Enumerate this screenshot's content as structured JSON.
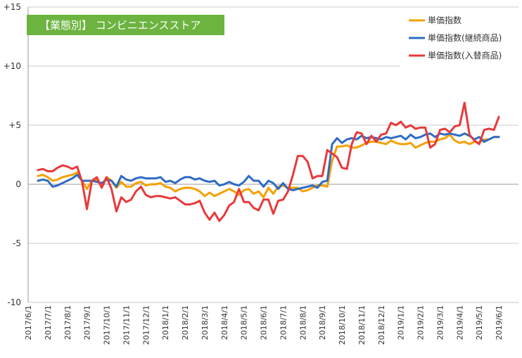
{
  "chart_data": {
    "type": "line",
    "title": "【業態別】 コンビニエンスストア",
    "title_bg": "#6cb33f",
    "ylim": [
      -10,
      15
    ],
    "ytick_values": [
      15,
      10,
      5,
      0,
      -5,
      -10
    ],
    "ytick_labels": [
      "+15",
      "+10",
      "+5",
      "0",
      "-5",
      "-10"
    ],
    "xtick_labels": [
      "2017/6/1",
      "2017/7/1",
      "2017/8/1",
      "2017/9/1",
      "2017/10/1",
      "2017/11/1",
      "2017/12/1",
      "2018/1/1",
      "2018/2/1",
      "2018/3/1",
      "2018/4/1",
      "2018/5/1",
      "2018/6/1",
      "2018/7/1",
      "2018/8/1",
      "2018/9/1",
      "2018/10/1",
      "2018/11/1",
      "2018/12/1",
      "2019/1/1",
      "2019/2/1",
      "2019/3/1",
      "2019/4/1",
      "2019/5/1",
      "2019/6/1"
    ],
    "grid": "horizontal",
    "legend_position": "top-right",
    "series": [
      {
        "name": "単価指数",
        "color": "#f5a000",
        "points": [
          [
            0.5,
            0.7
          ],
          [
            0.75,
            0.8
          ],
          [
            1.0,
            0.6
          ],
          [
            1.25,
            0.3
          ],
          [
            1.5,
            0.4
          ],
          [
            1.75,
            0.6
          ],
          [
            2.0,
            0.7
          ],
          [
            2.25,
            0.8
          ],
          [
            2.5,
            1.0
          ],
          [
            2.75,
            0.3
          ],
          [
            3.0,
            -0.4
          ],
          [
            3.25,
            0.3
          ],
          [
            3.5,
            0.4
          ],
          [
            3.75,
            -0.2
          ],
          [
            4.0,
            0.6
          ],
          [
            4.25,
            0.3
          ],
          [
            4.5,
            -0.3
          ],
          [
            4.75,
            0.2
          ],
          [
            5.0,
            -0.2
          ],
          [
            5.25,
            -0.2
          ],
          [
            5.5,
            0.1
          ],
          [
            5.75,
            0.2
          ],
          [
            6.0,
            -0.1
          ],
          [
            6.25,
            0.0
          ],
          [
            6.5,
            0.0
          ],
          [
            6.75,
            0.1
          ],
          [
            7.0,
            -0.2
          ],
          [
            7.25,
            -0.3
          ],
          [
            7.5,
            -0.6
          ],
          [
            7.75,
            -0.4
          ],
          [
            8.0,
            -0.3
          ],
          [
            8.25,
            -0.3
          ],
          [
            8.5,
            -0.4
          ],
          [
            8.75,
            -0.6
          ],
          [
            9.0,
            -1.0
          ],
          [
            9.25,
            -0.7
          ],
          [
            9.5,
            -1.0
          ],
          [
            9.75,
            -0.8
          ],
          [
            10.0,
            -0.6
          ],
          [
            10.25,
            -0.4
          ],
          [
            10.5,
            -0.6
          ],
          [
            10.75,
            -0.9
          ],
          [
            11.0,
            -0.5
          ],
          [
            11.25,
            -0.4
          ],
          [
            11.5,
            -0.8
          ],
          [
            11.75,
            -0.6
          ],
          [
            12.0,
            -1.1
          ],
          [
            12.25,
            -0.3
          ],
          [
            12.5,
            -0.8
          ],
          [
            12.75,
            -0.2
          ],
          [
            13.0,
            -0.1
          ],
          [
            13.25,
            -0.3
          ],
          [
            13.5,
            -0.3
          ],
          [
            13.75,
            -0.3
          ],
          [
            14.0,
            -0.6
          ],
          [
            14.25,
            -0.5
          ],
          [
            14.5,
            -0.3
          ],
          [
            14.75,
            -0.1
          ],
          [
            15.0,
            -0.1
          ],
          [
            15.25,
            -0.2
          ],
          [
            15.5,
            2.0
          ],
          [
            15.75,
            3.2
          ],
          [
            16.0,
            3.2
          ],
          [
            16.25,
            3.3
          ],
          [
            16.5,
            3.1
          ],
          [
            16.75,
            3.1
          ],
          [
            17.0,
            3.3
          ],
          [
            17.25,
            3.5
          ],
          [
            17.5,
            3.6
          ],
          [
            17.75,
            3.6
          ],
          [
            18.0,
            3.5
          ],
          [
            18.25,
            3.4
          ],
          [
            18.5,
            3.7
          ],
          [
            18.75,
            3.5
          ],
          [
            19.0,
            3.4
          ],
          [
            19.25,
            3.4
          ],
          [
            19.5,
            3.5
          ],
          [
            19.75,
            3.1
          ],
          [
            20.0,
            3.3
          ],
          [
            20.25,
            3.5
          ],
          [
            20.5,
            3.6
          ],
          [
            20.75,
            3.6
          ],
          [
            21.0,
            3.8
          ],
          [
            21.25,
            3.9
          ],
          [
            21.5,
            4.2
          ],
          [
            21.75,
            3.7
          ],
          [
            22.0,
            3.5
          ],
          [
            22.25,
            3.6
          ],
          [
            22.5,
            3.4
          ],
          [
            22.75,
            3.6
          ],
          [
            23.0,
            3.5
          ],
          [
            23.25,
            3.8
          ],
          [
            23.5,
            3.8
          ],
          [
            23.75,
            4.0
          ],
          [
            24.0,
            4.0
          ]
        ]
      },
      {
        "name": "単価指数(継続商品)",
        "color": "#2e6bc4",
        "points": [
          [
            0.5,
            0.3
          ],
          [
            0.75,
            0.4
          ],
          [
            1.0,
            0.3
          ],
          [
            1.25,
            -0.2
          ],
          [
            1.5,
            -0.1
          ],
          [
            1.75,
            0.1
          ],
          [
            2.0,
            0.3
          ],
          [
            2.25,
            0.5
          ],
          [
            2.5,
            0.8
          ],
          [
            2.75,
            0.3
          ],
          [
            3.0,
            0.3
          ],
          [
            3.25,
            0.3
          ],
          [
            3.5,
            0.2
          ],
          [
            3.75,
            0.1
          ],
          [
            4.0,
            0.4
          ],
          [
            4.25,
            0.3
          ],
          [
            4.5,
            -0.2
          ],
          [
            4.75,
            0.7
          ],
          [
            5.0,
            0.4
          ],
          [
            5.25,
            0.3
          ],
          [
            5.5,
            0.5
          ],
          [
            5.75,
            0.6
          ],
          [
            6.0,
            0.5
          ],
          [
            6.25,
            0.5
          ],
          [
            6.5,
            0.5
          ],
          [
            6.75,
            0.6
          ],
          [
            7.0,
            0.2
          ],
          [
            7.25,
            0.3
          ],
          [
            7.5,
            0.1
          ],
          [
            7.75,
            0.4
          ],
          [
            8.0,
            0.6
          ],
          [
            8.25,
            0.6
          ],
          [
            8.5,
            0.4
          ],
          [
            8.75,
            0.5
          ],
          [
            9.0,
            0.3
          ],
          [
            9.25,
            0.2
          ],
          [
            9.5,
            0.3
          ],
          [
            9.75,
            -0.1
          ],
          [
            10.0,
            0.0
          ],
          [
            10.25,
            0.2
          ],
          [
            10.5,
            0.0
          ],
          [
            10.75,
            -0.1
          ],
          [
            11.0,
            0.2
          ],
          [
            11.25,
            0.7
          ],
          [
            11.5,
            0.3
          ],
          [
            11.75,
            0.3
          ],
          [
            12.0,
            -0.2
          ],
          [
            12.25,
            0.3
          ],
          [
            12.5,
            0.1
          ],
          [
            12.75,
            -0.4
          ],
          [
            13.0,
            0.1
          ],
          [
            13.25,
            -0.4
          ],
          [
            13.5,
            -0.5
          ],
          [
            13.75,
            -0.4
          ],
          [
            14.0,
            -0.3
          ],
          [
            14.25,
            -0.2
          ],
          [
            14.5,
            -0.1
          ],
          [
            14.75,
            -0.3
          ],
          [
            15.0,
            0.2
          ],
          [
            15.25,
            0.3
          ],
          [
            15.5,
            3.4
          ],
          [
            15.75,
            3.9
          ],
          [
            16.0,
            3.5
          ],
          [
            16.25,
            3.8
          ],
          [
            16.5,
            3.9
          ],
          [
            16.75,
            3.8
          ],
          [
            17.0,
            4.1
          ],
          [
            17.25,
            3.9
          ],
          [
            17.5,
            4.0
          ],
          [
            17.75,
            3.9
          ],
          [
            18.0,
            3.8
          ],
          [
            18.25,
            4.0
          ],
          [
            18.5,
            3.9
          ],
          [
            18.75,
            4.0
          ],
          [
            19.0,
            4.1
          ],
          [
            19.25,
            3.8
          ],
          [
            19.5,
            4.2
          ],
          [
            19.75,
            3.9
          ],
          [
            20.0,
            4.0
          ],
          [
            20.25,
            4.2
          ],
          [
            20.5,
            4.3
          ],
          [
            20.75,
            4.0
          ],
          [
            21.0,
            4.3
          ],
          [
            21.25,
            4.2
          ],
          [
            21.5,
            4.3
          ],
          [
            21.75,
            4.2
          ],
          [
            22.0,
            4.1
          ],
          [
            22.25,
            4.3
          ],
          [
            22.5,
            4.1
          ],
          [
            22.75,
            3.8
          ],
          [
            23.0,
            4.0
          ],
          [
            23.25,
            3.6
          ],
          [
            23.5,
            3.8
          ],
          [
            23.75,
            4.0
          ],
          [
            24.0,
            4.0
          ]
        ]
      },
      {
        "name": "単価指数(入替商品)",
        "color": "#e8393b",
        "points": [
          [
            0.5,
            1.2
          ],
          [
            0.75,
            1.3
          ],
          [
            1.0,
            1.1
          ],
          [
            1.25,
            1.1
          ],
          [
            1.5,
            1.4
          ],
          [
            1.75,
            1.6
          ],
          [
            2.0,
            1.5
          ],
          [
            2.25,
            1.3
          ],
          [
            2.5,
            1.5
          ],
          [
            2.75,
            0.2
          ],
          [
            3.0,
            -2.1
          ],
          [
            3.25,
            0.3
          ],
          [
            3.5,
            0.6
          ],
          [
            3.75,
            -0.3
          ],
          [
            4.0,
            0.6
          ],
          [
            4.25,
            -0.4
          ],
          [
            4.5,
            -2.3
          ],
          [
            4.75,
            -1.1
          ],
          [
            5.0,
            -1.5
          ],
          [
            5.25,
            -1.3
          ],
          [
            5.5,
            -0.6
          ],
          [
            5.75,
            -0.2
          ],
          [
            6.0,
            -0.9
          ],
          [
            6.25,
            -1.1
          ],
          [
            6.5,
            -1.0
          ],
          [
            6.75,
            -1.0
          ],
          [
            7.0,
            -1.1
          ],
          [
            7.25,
            -1.2
          ],
          [
            7.5,
            -1.1
          ],
          [
            7.75,
            -1.4
          ],
          [
            8.0,
            -1.7
          ],
          [
            8.25,
            -1.7
          ],
          [
            8.5,
            -1.6
          ],
          [
            8.75,
            -1.4
          ],
          [
            9.0,
            -2.4
          ],
          [
            9.25,
            -3.0
          ],
          [
            9.5,
            -2.4
          ],
          [
            9.75,
            -3.1
          ],
          [
            10.0,
            -2.6
          ],
          [
            10.25,
            -1.8
          ],
          [
            10.5,
            -1.5
          ],
          [
            10.75,
            -0.4
          ],
          [
            11.0,
            -1.5
          ],
          [
            11.25,
            -1.5
          ],
          [
            11.5,
            -2.0
          ],
          [
            11.75,
            -2.2
          ],
          [
            12.0,
            -1.3
          ],
          [
            12.25,
            -1.3
          ],
          [
            12.5,
            -2.5
          ],
          [
            12.75,
            -1.4
          ],
          [
            13.0,
            -1.3
          ],
          [
            13.25,
            -0.6
          ],
          [
            13.5,
            0.8
          ],
          [
            13.75,
            2.4
          ],
          [
            14.0,
            2.4
          ],
          [
            14.25,
            1.9
          ],
          [
            14.5,
            0.5
          ],
          [
            14.75,
            0.7
          ],
          [
            15.0,
            0.7
          ],
          [
            15.25,
            2.9
          ],
          [
            15.5,
            2.6
          ],
          [
            15.75,
            2.3
          ],
          [
            16.0,
            1.4
          ],
          [
            16.25,
            1.3
          ],
          [
            16.5,
            3.4
          ],
          [
            16.75,
            4.4
          ],
          [
            17.0,
            4.3
          ],
          [
            17.25,
            3.4
          ],
          [
            17.5,
            4.1
          ],
          [
            17.75,
            3.6
          ],
          [
            18.0,
            4.2
          ],
          [
            18.25,
            4.3
          ],
          [
            18.5,
            5.2
          ],
          [
            18.75,
            5.0
          ],
          [
            19.0,
            5.3
          ],
          [
            19.25,
            4.8
          ],
          [
            19.5,
            5.0
          ],
          [
            19.75,
            4.7
          ],
          [
            20.0,
            4.8
          ],
          [
            20.25,
            4.8
          ],
          [
            20.5,
            3.1
          ],
          [
            20.75,
            3.4
          ],
          [
            21.0,
            4.6
          ],
          [
            21.25,
            4.7
          ],
          [
            21.5,
            4.4
          ],
          [
            21.75,
            4.9
          ],
          [
            22.0,
            5.0
          ],
          [
            22.25,
            6.9
          ],
          [
            22.5,
            4.2
          ],
          [
            22.75,
            3.7
          ],
          [
            23.0,
            3.4
          ],
          [
            23.25,
            4.6
          ],
          [
            23.5,
            4.7
          ],
          [
            23.75,
            4.6
          ],
          [
            24.0,
            5.7
          ]
        ]
      }
    ]
  }
}
